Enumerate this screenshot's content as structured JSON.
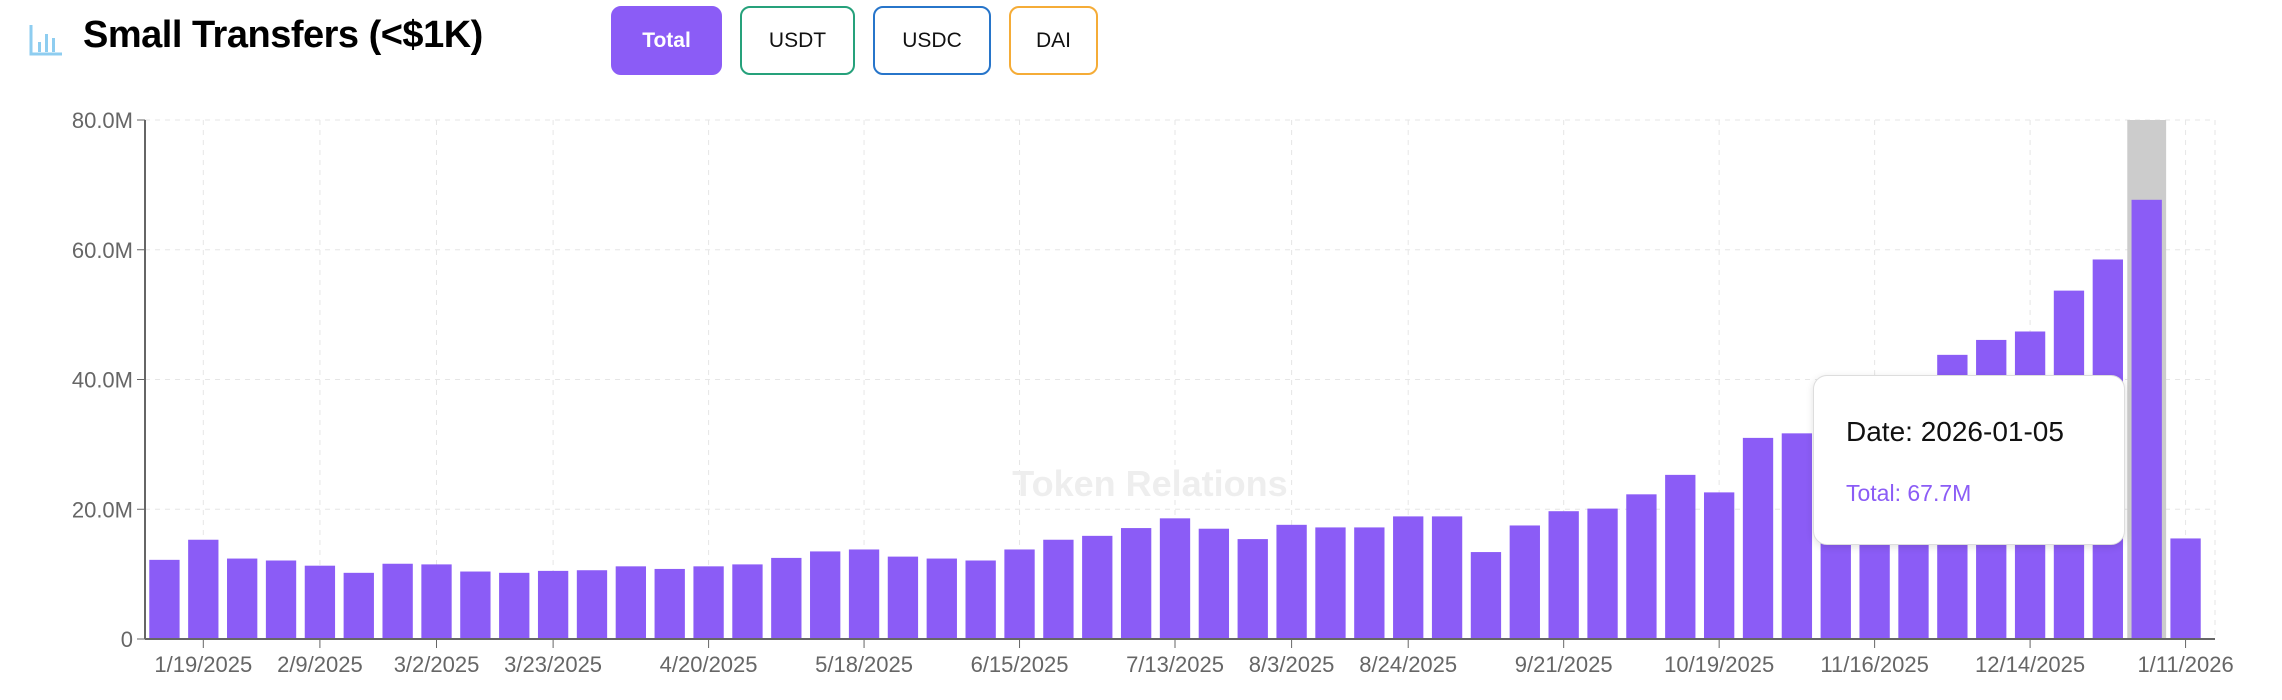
{
  "header": {
    "icon": "bar-chart-icon",
    "title": "Small Transfers (<$1K)",
    "buttons": [
      {
        "label": "Total",
        "active": true,
        "color": "#8b5cf6"
      },
      {
        "label": "USDT",
        "active": false,
        "color": "#26a17b"
      },
      {
        "label": "USDC",
        "active": false,
        "color": "#2775ca"
      },
      {
        "label": "DAI",
        "active": false,
        "color": "#f5ac37"
      }
    ]
  },
  "watermark": "Token Relations",
  "tooltip": {
    "date": "Date: 2026-01-05",
    "value": "Total: 67.7M"
  },
  "chart_data": {
    "type": "bar",
    "title": "Small Transfers (<$1K)",
    "xlabel": "",
    "ylabel": "",
    "ylim": [
      0,
      80000000
    ],
    "y_ticks": [
      "0",
      "20.0M",
      "40.0M",
      "60.0M",
      "80.0M"
    ],
    "y_tick_values": [
      0,
      20000000,
      40000000,
      60000000,
      80000000
    ],
    "grid": true,
    "bar_color": "#8b5cf6",
    "x_tick_labels": [
      {
        "index": 1,
        "label": "1/19/2025"
      },
      {
        "index": 4,
        "label": "2/9/2025"
      },
      {
        "index": 7,
        "label": "3/2/2025"
      },
      {
        "index": 10,
        "label": "3/23/2025"
      },
      {
        "index": 14,
        "label": "4/20/2025"
      },
      {
        "index": 18,
        "label": "5/18/2025"
      },
      {
        "index": 22,
        "label": "6/15/2025"
      },
      {
        "index": 26,
        "label": "7/13/2025"
      },
      {
        "index": 29,
        "label": "8/3/2025"
      },
      {
        "index": 32,
        "label": "8/24/2025"
      },
      {
        "index": 36,
        "label": "9/21/2025"
      },
      {
        "index": 40,
        "label": "10/19/2025"
      },
      {
        "index": 44,
        "label": "11/16/2025"
      },
      {
        "index": 48,
        "label": "12/14/2025"
      },
      {
        "index": 52,
        "label": "1/11/2026"
      }
    ],
    "highlighted_index": 51,
    "series": [
      {
        "name": "Total",
        "values_millions": [
          12.2,
          15.3,
          12.4,
          12.1,
          11.3,
          10.2,
          11.6,
          11.5,
          10.4,
          10.2,
          10.5,
          10.6,
          11.2,
          10.8,
          11.2,
          11.5,
          12.5,
          13.5,
          13.8,
          12.7,
          12.4,
          12.1,
          13.8,
          15.3,
          15.9,
          17.1,
          18.6,
          17.0,
          15.4,
          17.6,
          17.2,
          17.2,
          18.9,
          18.9,
          13.4,
          17.5,
          19.7,
          20.1,
          22.3,
          25.3,
          22.6,
          31.0,
          31.7,
          34.0,
          36.0,
          38.0,
          43.8,
          46.1,
          47.4,
          53.7,
          58.5,
          67.7,
          15.5
        ]
      }
    ]
  }
}
